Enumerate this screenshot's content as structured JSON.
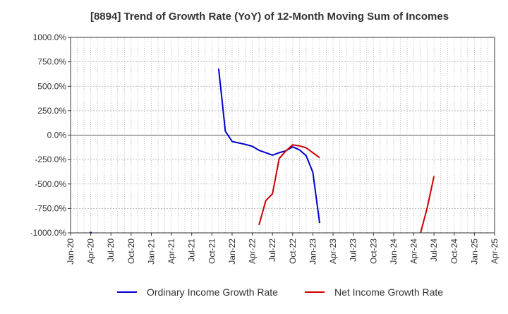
{
  "chart_data": {
    "type": "line",
    "title": "[8894]  Trend of Growth Rate (YoY) of 12-Month Moving Sum of Incomes",
    "y_ticks": [
      {
        "value": 1000,
        "label": "1000.0%"
      },
      {
        "value": 750,
        "label": "750.0%"
      },
      {
        "value": 500,
        "label": "500.0%"
      },
      {
        "value": 250,
        "label": "250.0%"
      },
      {
        "value": 0,
        "label": "0.0%"
      },
      {
        "value": -250,
        "label": "-250.0%"
      },
      {
        "value": -500,
        "label": "-500.0%"
      },
      {
        "value": -750,
        "label": "-750.0%"
      },
      {
        "value": -1000,
        "label": "-1000.0%"
      }
    ],
    "ylim": [
      -1000,
      1000
    ],
    "x_tick_labels": [
      "Jan-20",
      "Apr-20",
      "Jul-20",
      "Oct-20",
      "Jan-21",
      "Apr-21",
      "Jul-21",
      "Oct-21",
      "Jan-22",
      "Apr-22",
      "Jul-22",
      "Oct-22",
      "Jan-23",
      "Apr-23",
      "Jul-23",
      "Oct-23",
      "Jan-24",
      "Apr-24",
      "Jul-24",
      "Oct-24",
      "Jan-25",
      "Apr-25"
    ],
    "grid": true,
    "legend_position": "bottom",
    "series": [
      {
        "name": "Ordinary Income Growth Rate",
        "color": "#0000cc",
        "points": [
          [
            "2021-11",
            680
          ],
          [
            "2021-12",
            40
          ],
          [
            "2022-01",
            -65
          ],
          [
            "2022-02",
            -80
          ],
          [
            "2022-03",
            -95
          ],
          [
            "2022-04",
            -115
          ],
          [
            "2022-05",
            -155
          ],
          [
            "2022-06",
            -180
          ],
          [
            "2022-07",
            -205
          ],
          [
            "2022-08",
            -180
          ],
          [
            "2022-09",
            -160
          ],
          [
            "2022-10",
            -120
          ],
          [
            "2022-11",
            -150
          ],
          [
            "2022-12",
            -210
          ],
          [
            "2023-01",
            -380
          ],
          [
            "2023-02",
            -900
          ]
        ],
        "extra_points": [
          [
            "2020-04",
            -998
          ]
        ]
      },
      {
        "name": "Net Income Growth Rate",
        "color": "#cc0000",
        "points": [
          [
            "2022-05",
            -920
          ],
          [
            "2022-06",
            -670
          ],
          [
            "2022-07",
            -600
          ],
          [
            "2022-08",
            -240
          ],
          [
            "2022-09",
            -160
          ],
          [
            "2022-10",
            -100
          ],
          [
            "2022-11",
            -110
          ],
          [
            "2022-12",
            -130
          ],
          [
            "2023-01",
            -180
          ],
          [
            "2023-02",
            -230
          ]
        ],
        "points2": [
          [
            "2024-05",
            -1000
          ],
          [
            "2024-06",
            -740
          ],
          [
            "2024-07",
            -420
          ]
        ]
      }
    ]
  }
}
